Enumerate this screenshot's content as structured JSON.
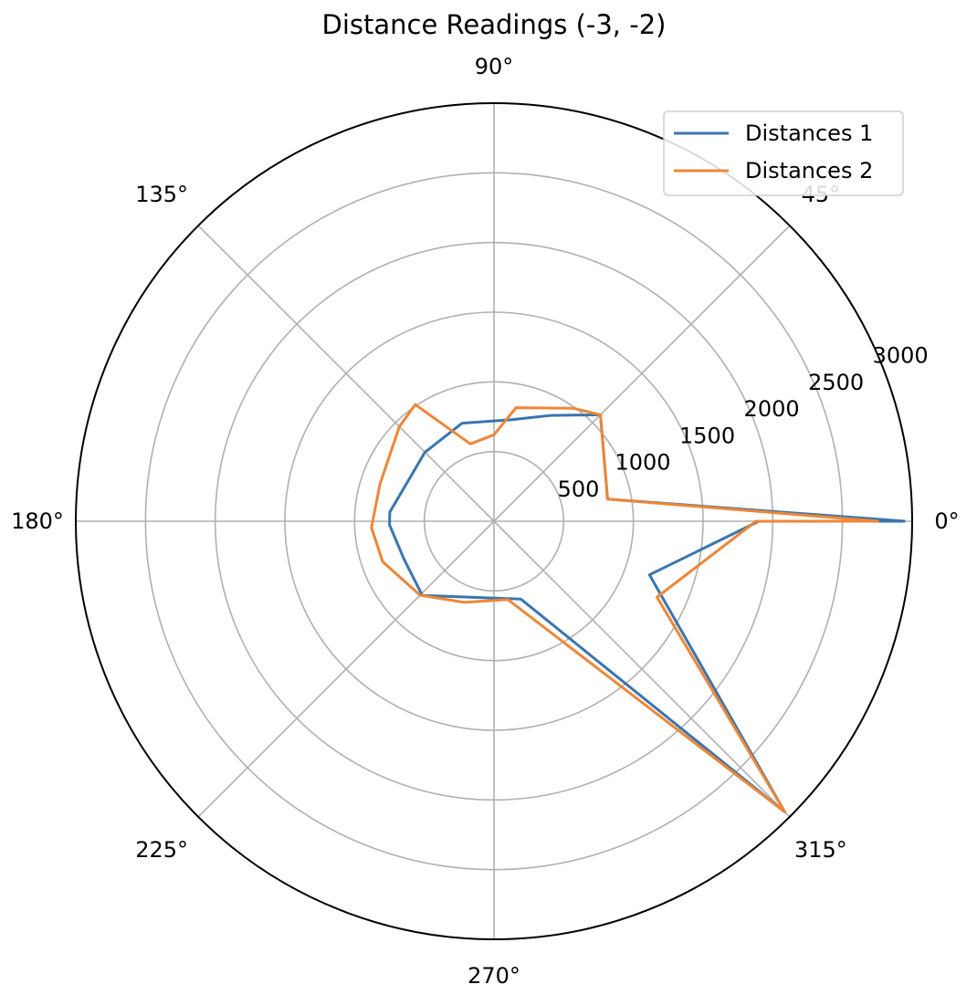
{
  "chart_data": {
    "type": "line",
    "projection": "polar",
    "title": "Distance Readings (-3, -2)",
    "angle_unit": "degrees",
    "angular_ticks": [
      "0°",
      "45°",
      "90°",
      "135°",
      "180°",
      "225°",
      "270°",
      "315°"
    ],
    "radial_ticks": [
      "500",
      "1000",
      "1500",
      "2000",
      "2500",
      "3000"
    ],
    "radial_tick_values": [
      500,
      1000,
      1500,
      2000,
      2500,
      3000
    ],
    "rlim": [
      0,
      3000
    ],
    "grid": true,
    "legend_position": "top-right",
    "series": [
      {
        "name": "Distances 1",
        "color": "#3b75af",
        "points": [
          [
            0,
            2950
          ],
          [
            11,
            830
          ],
          [
            45,
            1080
          ],
          [
            62,
            860
          ],
          [
            80,
            740
          ],
          [
            90,
            720
          ],
          [
            108,
            740
          ],
          [
            135,
            700
          ],
          [
            175,
            750
          ],
          [
            182,
            750
          ],
          [
            203,
            700
          ],
          [
            226,
            740
          ],
          [
            253,
            570
          ],
          [
            289,
            590
          ],
          [
            315,
            2950
          ],
          [
            341,
            1180
          ],
          [
            360,
            1900
          ],
          [
            0,
            2950
          ]
        ]
      },
      {
        "name": "Distances 2",
        "color": "#ef8636",
        "points": [
          [
            0,
            2760
          ],
          [
            11,
            830
          ],
          [
            45,
            1080
          ],
          [
            55,
            990
          ],
          [
            79,
            830
          ],
          [
            90,
            620
          ],
          [
            107,
            580
          ],
          [
            124,
            1010
          ],
          [
            135,
            960
          ],
          [
            162,
            860
          ],
          [
            183,
            880
          ],
          [
            200,
            850
          ],
          [
            225,
            750
          ],
          [
            250,
            620
          ],
          [
            280,
            570
          ],
          [
            315,
            2950
          ],
          [
            335,
            1290
          ],
          [
            360,
            1880
          ],
          [
            0,
            2760
          ]
        ]
      }
    ]
  }
}
